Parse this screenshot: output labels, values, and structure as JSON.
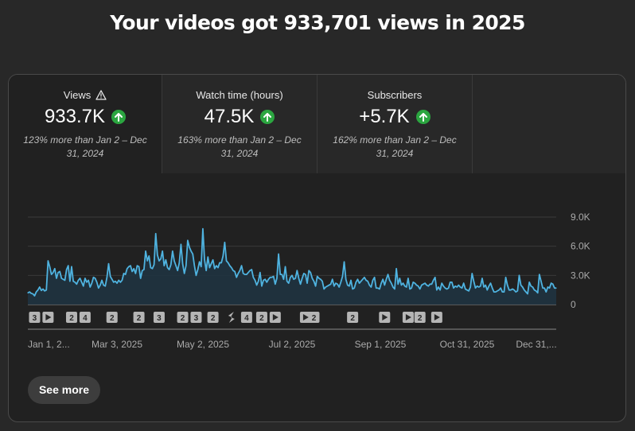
{
  "headline": "Your videos got 933,701 views in 2025",
  "tabs": [
    {
      "title": "Views",
      "value": "933.7K",
      "compare": "123% more than Jan 2 – Dec 31, 2024",
      "active": true,
      "warning_icon": "warning-icon",
      "trend_icon": "arrow-up-icon"
    },
    {
      "title": "Watch time (hours)",
      "value": "47.5K",
      "compare": "163% more than Jan 2 – Dec 31, 2024",
      "trend_icon": "arrow-up-icon"
    },
    {
      "title": "Subscribers",
      "value": "+5.7K",
      "compare": "162% more than Jan 2 – Dec 31, 2024",
      "trend_icon": "arrow-up-icon"
    }
  ],
  "see_more": "See more",
  "colors": {
    "line": "#4fb3e0",
    "fill": "#1f3340",
    "positive": "#2ba640",
    "background": "#282828"
  },
  "chart_data": {
    "type": "line",
    "series": [
      {
        "values": [
          1200,
          1300,
          1150,
          1100,
          900,
          1300,
          1500,
          1800,
          1450,
          1600,
          1400,
          1500,
          4500,
          3900,
          3100,
          3300,
          3700,
          2700,
          3300,
          3400,
          2700,
          2600,
          2500,
          3600,
          4000,
          2400,
          3900,
          2400,
          2300,
          2100,
          2500,
          2700,
          2300,
          1900,
          2700,
          2300,
          2500,
          1800,
          2200,
          2800,
          2700,
          2300,
          1700,
          2000,
          2500,
          2000,
          1900,
          2800,
          4200,
          2900,
          2600,
          2300,
          2400,
          2200,
          2500,
          2300,
          2500,
          3200,
          3100,
          3700,
          3900,
          4000,
          3400,
          3700,
          3200,
          4000,
          3900,
          2700,
          3500,
          3600,
          5500,
          4500,
          5000,
          3800,
          3700,
          4100,
          7300,
          5100,
          4500,
          4700,
          5500,
          4000,
          4600,
          3800,
          3600,
          4100,
          5500,
          4500,
          4000,
          3500,
          4300,
          6200,
          4200,
          3200,
          4000,
          6600,
          5900,
          5500,
          5200,
          4000,
          3000,
          3600,
          4400,
          3900,
          7800,
          4600,
          3500,
          4900,
          3800,
          4200,
          4600,
          3700,
          4000,
          3800,
          4300,
          4300,
          5000,
          6400,
          4500,
          4300,
          4000,
          3800,
          3500,
          3400,
          2800,
          3200,
          3500,
          4000,
          3200,
          3100,
          3100,
          3300,
          3500,
          3600,
          2800,
          2500,
          2000,
          2400,
          3300,
          1900,
          2500,
          2600,
          2300,
          2600,
          2800,
          2800,
          2900,
          2100,
          2700,
          5200,
          3100,
          3100,
          2600,
          3900,
          2400,
          2200,
          2800,
          3000,
          2600,
          2700,
          3500,
          2700,
          2100,
          2700,
          3200,
          3100,
          2200,
          3500,
          3300,
          2700,
          2400,
          1900,
          2900,
          2700,
          2600,
          2400,
          1600,
          1800,
          1900,
          2000,
          2100,
          2600,
          1900,
          2200,
          2100,
          1800,
          2300,
          2900,
          4400,
          2600,
          2000,
          1900,
          2500,
          1600,
          1700,
          2300,
          2600,
          2200,
          2400,
          2600,
          2800,
          2500,
          2400,
          2000,
          1800,
          2500,
          2800,
          1700,
          1700,
          1600,
          2200,
          2600,
          2000,
          2600,
          3100,
          2500,
          2200,
          1800,
          1600,
          3700,
          2100,
          2700,
          2000,
          2200,
          1900,
          1800,
          2700,
          1600,
          1700,
          2300,
          2200,
          2000,
          1900,
          1600,
          2000,
          2100,
          2200,
          2000,
          1900,
          2100,
          2100,
          2500,
          2800,
          1500,
          1800,
          1500,
          2200,
          1900,
          1700,
          1600,
          1700,
          2300,
          2300,
          1700,
          1900,
          1800,
          2000,
          1800,
          1700,
          2200,
          1600,
          1500,
          1400,
          1800,
          3200,
          2400,
          1700,
          1900,
          1800,
          1900,
          2700,
          1800,
          2000,
          1500,
          1900,
          2200,
          1700,
          1300,
          1300,
          1400,
          1500,
          1700,
          1300,
          1300,
          2800,
          2000,
          1500,
          1500,
          1600,
          1500,
          1300,
          1400,
          3000,
          2000,
          1800,
          1500,
          1300,
          1100,
          2300,
          1900,
          1800,
          1500,
          1400,
          1200,
          3100,
          2400,
          1700,
          1700,
          1300,
          1800,
          1700,
          2200,
          2100,
          1700,
          1700
        ]
      }
    ],
    "y_ticks": [
      "9.0K",
      "6.0K",
      "3.0K",
      "0"
    ],
    "ylim": [
      0,
      9000
    ],
    "grid": true,
    "x_ticks": [
      "Jan 1, 2...",
      "Mar 3, 2025",
      "May 2, 2025",
      "Jul 2, 2025",
      "Sep 1, 2025",
      "Oct 31, 2025",
      "Dec 31,..."
    ],
    "markers": [
      {
        "day": 4,
        "kind": "count",
        "label": "3"
      },
      {
        "day": 12,
        "kind": "play"
      },
      {
        "day": 26,
        "kind": "count",
        "label": "2"
      },
      {
        "day": 34,
        "kind": "count",
        "label": "4"
      },
      {
        "day": 50,
        "kind": "count",
        "label": "2"
      },
      {
        "day": 66,
        "kind": "count",
        "label": "2"
      },
      {
        "day": 78,
        "kind": "count",
        "label": "3"
      },
      {
        "day": 92,
        "kind": "count",
        "label": "2"
      },
      {
        "day": 100,
        "kind": "count",
        "label": "3"
      },
      {
        "day": 110,
        "kind": "count",
        "label": "2"
      },
      {
        "day": 121,
        "kind": "short"
      },
      {
        "day": 130,
        "kind": "count",
        "label": "4"
      },
      {
        "day": 139,
        "kind": "count",
        "label": "2"
      },
      {
        "day": 147,
        "kind": "play"
      },
      {
        "day": 165,
        "kind": "play"
      },
      {
        "day": 170,
        "kind": "count",
        "label": "2"
      },
      {
        "day": 193,
        "kind": "count",
        "label": "2"
      },
      {
        "day": 212,
        "kind": "play"
      },
      {
        "day": 226,
        "kind": "play"
      },
      {
        "day": 233,
        "kind": "count",
        "label": "2"
      },
      {
        "day": 243,
        "kind": "play"
      }
    ]
  }
}
